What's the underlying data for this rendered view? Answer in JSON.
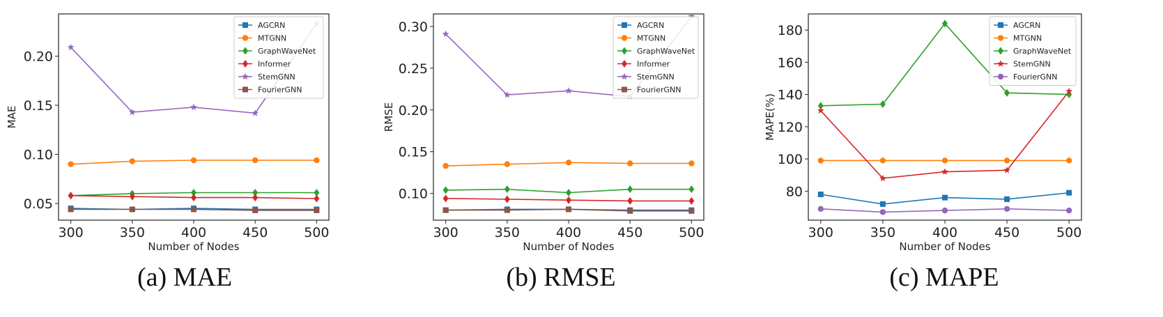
{
  "chart_data": [
    {
      "type": "line",
      "caption": "(a) MAE",
      "xlabel": "Number of Nodes",
      "ylabel": "MAE",
      "x": [
        300,
        350,
        400,
        450,
        500
      ],
      "xlim": [
        290,
        510
      ],
      "ylim": [
        0.033,
        0.243
      ],
      "yticks": [
        0.05,
        0.1,
        0.15,
        0.2
      ],
      "ytick_labels": [
        "0.05",
        "0.10",
        "0.15",
        "0.20"
      ],
      "legend": "top-right",
      "series": [
        {
          "name": "AGCRN",
          "values": [
            0.045,
            0.044,
            0.045,
            0.044,
            0.044
          ]
        },
        {
          "name": "MTGNN",
          "values": [
            0.09,
            0.093,
            0.094,
            0.094,
            0.094
          ]
        },
        {
          "name": "GraphWaveNet",
          "values": [
            0.058,
            0.06,
            0.061,
            0.061,
            0.061
          ]
        },
        {
          "name": "Informer",
          "values": [
            0.058,
            0.057,
            0.056,
            0.056,
            0.055
          ]
        },
        {
          "name": "StemGNN",
          "values": [
            0.209,
            0.143,
            0.148,
            0.142,
            0.233
          ]
        },
        {
          "name": "FourierGNN",
          "values": [
            0.044,
            0.044,
            0.044,
            0.043,
            0.043
          ]
        }
      ]
    },
    {
      "type": "line",
      "caption": "(b) RMSE",
      "xlabel": "Number of Nodes",
      "ylabel": "RMSE",
      "x": [
        300,
        350,
        400,
        450,
        500
      ],
      "xlim": [
        290,
        510
      ],
      "ylim": [
        0.068,
        0.315
      ],
      "yticks": [
        0.1,
        0.15,
        0.2,
        0.25,
        0.3
      ],
      "ytick_labels": [
        "0.10",
        "0.15",
        "0.20",
        "0.25",
        "0.30"
      ],
      "legend": "top-right",
      "series": [
        {
          "name": "AGCRN",
          "values": [
            0.08,
            0.081,
            0.081,
            0.08,
            0.08
          ]
        },
        {
          "name": "MTGNN",
          "values": [
            0.133,
            0.135,
            0.137,
            0.136,
            0.136
          ]
        },
        {
          "name": "GraphWaveNet",
          "values": [
            0.104,
            0.105,
            0.101,
            0.105,
            0.105
          ]
        },
        {
          "name": "Informer",
          "values": [
            0.094,
            0.093,
            0.092,
            0.091,
            0.091
          ]
        },
        {
          "name": "StemGNN",
          "values": [
            0.291,
            0.218,
            0.223,
            0.216,
            0.312
          ]
        },
        {
          "name": "FourierGNN",
          "values": [
            0.08,
            0.08,
            0.081,
            0.079,
            0.079
          ]
        }
      ]
    },
    {
      "type": "line",
      "caption": "(c) MAPE",
      "xlabel": "Number of Nodes",
      "ylabel": "MAPE(%)",
      "x": [
        300,
        350,
        400,
        450,
        500
      ],
      "xlim": [
        290,
        510
      ],
      "ylim": [
        62,
        190
      ],
      "yticks": [
        80,
        100,
        120,
        140,
        160,
        180
      ],
      "ytick_labels": [
        "80",
        "100",
        "120",
        "140",
        "160",
        "180"
      ],
      "legend": "top-right",
      "series": [
        {
          "name": "AGCRN",
          "values": [
            78,
            72,
            76,
            75,
            79
          ]
        },
        {
          "name": "MTGNN",
          "values": [
            99,
            99,
            99,
            99,
            99
          ]
        },
        {
          "name": "GraphWaveNet",
          "values": [
            133,
            134,
            184,
            141,
            140
          ]
        },
        {
          "name": "StemGNN",
          "values": [
            130,
            88,
            92,
            93,
            142
          ]
        },
        {
          "name": "FourierGNN",
          "values": [
            69,
            67,
            68,
            69,
            68
          ]
        }
      ]
    }
  ],
  "colors": {
    "AGCRN": "#1f77b4",
    "MTGNN": "#ff7f0e",
    "GraphWaveNet": "#2ca02c",
    "Informer": "#d62728",
    "StemGNN": "#9467bd",
    "FourierGNN": "#8c564b"
  },
  "markers": {
    "AGCRN": "square",
    "MTGNN": "circle",
    "GraphWaveNet": "diamond",
    "Informer": "diamond",
    "StemGNN": "star",
    "FourierGNN": "square"
  },
  "colors_panel_c": {
    "StemGNN": "#d62728",
    "FourierGNN": "#9467bd"
  },
  "markers_panel_c": {
    "StemGNN": "star",
    "FourierGNN": "circle"
  }
}
